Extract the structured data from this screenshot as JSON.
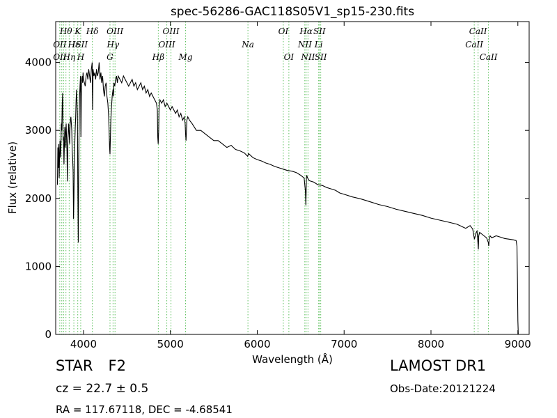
{
  "chart_data": {
    "type": "line",
    "title": "spec-56286-GAC118S05V1_sp15-230.fits",
    "xlabel": "Wavelength (Å)",
    "ylabel": "Flux (relative)",
    "xlim": [
      3680,
      9130
    ],
    "ylim": [
      0,
      4600
    ],
    "xticks": [
      4000,
      5000,
      6000,
      7000,
      8000,
      9000
    ],
    "yticks": [
      0,
      1000,
      2000,
      3000,
      4000
    ],
    "grid": false,
    "line_color": "#000000",
    "marker_color": "#5cc05c",
    "series": [
      {
        "x": [
          3700,
          3705,
          3710,
          3715,
          3720,
          3725,
          3730,
          3735,
          3740,
          3745,
          3750,
          3755,
          3760,
          3765,
          3770,
          3775,
          3780,
          3785,
          3790,
          3795,
          3800,
          3805,
          3810,
          3815,
          3820,
          3825,
          3830,
          3835,
          3840,
          3845,
          3850,
          3855,
          3860,
          3865,
          3870,
          3875,
          3880,
          3885,
          3890,
          3895,
          3900,
          3905,
          3910,
          3915,
          3920,
          3925,
          3930,
          3935,
          3940,
          3945,
          3950,
          3955,
          3960,
          3965,
          3970,
          3975,
          3980,
          3985,
          3990,
          3995,
          4000,
          4010,
          4020,
          4030,
          4040,
          4050,
          4060,
          4070,
          4080,
          4090,
          4095,
          4100,
          4105,
          4110,
          4120,
          4130,
          4140,
          4150,
          4160,
          4170,
          4180,
          4190,
          4200,
          4210,
          4220,
          4230,
          4240,
          4250,
          4260,
          4270,
          4280,
          4290,
          4295,
          4300,
          4305,
          4310,
          4315,
          4320,
          4330,
          4340,
          4345,
          4350,
          4360,
          4370,
          4380,
          4390,
          4400,
          4420,
          4440,
          4460,
          4480,
          4500,
          4520,
          4540,
          4560,
          4580,
          4600,
          4620,
          4640,
          4660,
          4680,
          4700,
          4720,
          4740,
          4760,
          4780,
          4800,
          4820,
          4840,
          4850,
          4855,
          4860,
          4865,
          4870,
          4880,
          4900,
          4920,
          4940,
          4960,
          4980,
          5000,
          5020,
          5040,
          5060,
          5080,
          5100,
          5120,
          5140,
          5160,
          5170,
          5175,
          5180,
          5185,
          5190,
          5200,
          5220,
          5250,
          5300,
          5350,
          5400,
          5450,
          5500,
          5550,
          5600,
          5650,
          5700,
          5750,
          5800,
          5850,
          5890,
          5900,
          5950,
          6000,
          6050,
          6100,
          6150,
          6200,
          6250,
          6300,
          6350,
          6400,
          6450,
          6500,
          6540,
          6555,
          6560,
          6563,
          6566,
          6570,
          6580,
          6600,
          6650,
          6700,
          6750,
          6800,
          6850,
          6900,
          6950,
          7000,
          7100,
          7200,
          7300,
          7400,
          7500,
          7600,
          7700,
          7800,
          7900,
          8000,
          8100,
          8200,
          8300,
          8400,
          8450,
          8480,
          8500,
          8520,
          8530,
          8540,
          8545,
          8550,
          8560,
          8580,
          8600,
          8640,
          8660,
          8665,
          8670,
          8680,
          8700,
          8750,
          8800,
          8850,
          8900,
          8950,
          8980,
          8990,
          8995,
          9000,
          9005
        ],
        "y": [
          2200,
          2750,
          2450,
          2800,
          2300,
          2650,
          2850,
          2600,
          2750,
          3100,
          3000,
          3400,
          3550,
          2850,
          2900,
          2500,
          2800,
          3050,
          2750,
          2950,
          3100,
          2900,
          2700,
          2250,
          2850,
          3000,
          3100,
          2950,
          2800,
          3050,
          3150,
          3200,
          3100,
          3000,
          2700,
          2600,
          2400,
          1700,
          2000,
          2600,
          2800,
          3050,
          3200,
          3450,
          3600,
          3400,
          3250,
          2100,
          1350,
          2600,
          3100,
          3500,
          3650,
          3800,
          2900,
          3500,
          3750,
          3800,
          3700,
          3850,
          3750,
          3700,
          3650,
          3800,
          3850,
          3750,
          3900,
          3800,
          3700,
          3900,
          3950,
          4000,
          3300,
          3900,
          3800,
          3850,
          3750,
          3900,
          3800,
          3850,
          4000,
          3750,
          3850,
          3700,
          3800,
          3600,
          3500,
          3650,
          3700,
          3500,
          3400,
          3200,
          3000,
          2750,
          2650,
          2900,
          3150,
          3300,
          3500,
          3600,
          3500,
          3700,
          3650,
          3750,
          3800,
          3700,
          3800,
          3750,
          3700,
          3800,
          3750,
          3700,
          3650,
          3700,
          3750,
          3650,
          3700,
          3600,
          3650,
          3700,
          3600,
          3650,
          3550,
          3600,
          3500,
          3550,
          3500,
          3450,
          3400,
          3300,
          2900,
          2800,
          3000,
          3350,
          3450,
          3400,
          3450,
          3350,
          3400,
          3350,
          3300,
          3350,
          3300,
          3250,
          3300,
          3200,
          3250,
          3150,
          3200,
          3100,
          2950,
          2850,
          3000,
          3150,
          3200,
          3150,
          3100,
          3000,
          3000,
          2950,
          2900,
          2850,
          2850,
          2800,
          2750,
          2780,
          2720,
          2700,
          2670,
          2620,
          2660,
          2600,
          2570,
          2550,
          2520,
          2500,
          2470,
          2450,
          2430,
          2410,
          2400,
          2380,
          2340,
          2300,
          2100,
          1900,
          2100,
          2300,
          2340,
          2300,
          2260,
          2240,
          2200,
          2190,
          2160,
          2140,
          2120,
          2080,
          2060,
          2020,
          1990,
          1950,
          1910,
          1880,
          1840,
          1810,
          1780,
          1750,
          1710,
          1680,
          1650,
          1620,
          1560,
          1600,
          1550,
          1400,
          1500,
          1520,
          1350,
          1250,
          1450,
          1500,
          1480,
          1460,
          1420,
          1350,
          1300,
          1400,
          1450,
          1420,
          1450,
          1430,
          1410,
          1400,
          1390,
          1380,
          1300,
          800,
          200,
          0
        ]
      }
    ],
    "annotations": [
      {
        "label": "Hθ",
        "x": 3798,
        "row": 0
      },
      {
        "label": "OII",
        "x": 3727,
        "row": 1
      },
      {
        "label": "OII",
        "x": 3727,
        "row": 2
      },
      {
        "label": "Hη",
        "x": 3835,
        "row": 2
      },
      {
        "label": "K",
        "x": 3934,
        "row": 0
      },
      {
        "label": "Hε",
        "x": 3889,
        "row": 1
      },
      {
        "label": "ISII",
        "x": 3960,
        "row": 1
      },
      {
        "label": "H",
        "x": 3968,
        "row": 2
      },
      {
        "label": "Hδ",
        "x": 4102,
        "row": 0
      },
      {
        "label": "OIII",
        "x": 4363,
        "row": 0
      },
      {
        "label": "Hγ",
        "x": 4340,
        "row": 1
      },
      {
        "label": "G",
        "x": 4305,
        "row": 2
      },
      {
        "label": "OIII",
        "x": 5007,
        "row": 0
      },
      {
        "label": "OIII",
        "x": 4959,
        "row": 1
      },
      {
        "label": "Hβ",
        "x": 4861,
        "row": 2
      },
      {
        "label": "Mg",
        "x": 5175,
        "row": 2
      },
      {
        "label": "Na",
        "x": 5893,
        "row": 1
      },
      {
        "label": "OI",
        "x": 6300,
        "row": 0
      },
      {
        "label": "OI",
        "x": 6364,
        "row": 2
      },
      {
        "label": "Hα",
        "x": 6563,
        "row": 0
      },
      {
        "label": "SII",
        "x": 6716,
        "row": 0
      },
      {
        "label": "NII",
        "x": 6548,
        "row": 1
      },
      {
        "label": "Li",
        "x": 6707,
        "row": 1
      },
      {
        "label": "NII",
        "x": 6584,
        "row": 2
      },
      {
        "label": "SII",
        "x": 6731,
        "row": 2
      },
      {
        "label": "CaII",
        "x": 8542,
        "row": 0
      },
      {
        "label": "CaII",
        "x": 8498,
        "row": 1
      },
      {
        "label": "CaII",
        "x": 8662,
        "row": 2
      }
    ],
    "marker_lines": [
      3727,
      3750,
      3771,
      3798,
      3835,
      3889,
      3934,
      3968,
      4102,
      4305,
      4340,
      4363,
      4861,
      4959,
      5007,
      5175,
      5893,
      6300,
      6364,
      6548,
      6563,
      6584,
      6707,
      6716,
      6731,
      8498,
      8542,
      8662
    ]
  },
  "info": {
    "object_class": "STAR",
    "subclass": "F2",
    "redshift": "cz = 22.7 ± 0.5",
    "coords": "RA = 117.67118, DEC = -4.68541",
    "survey": "LAMOST DR1",
    "obs_date": "Obs-Date:20121224"
  }
}
